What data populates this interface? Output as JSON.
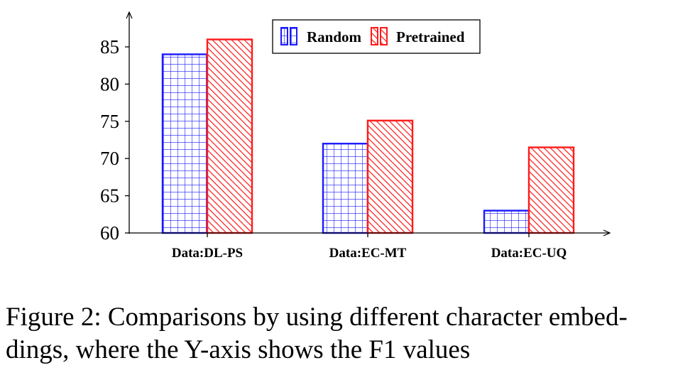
{
  "chart_data": {
    "type": "bar",
    "categories": [
      "Data:DL-PS",
      "Data:EC-MT",
      "Data:EC-UQ"
    ],
    "series": [
      {
        "name": "Random",
        "values": [
          84,
          72,
          63
        ],
        "color": "#1a1aff",
        "pattern": "grid"
      },
      {
        "name": "Pretrained",
        "values": [
          86,
          75.1,
          71.5
        ],
        "color": "#ff1a1a",
        "pattern": "diagonal-lines"
      }
    ],
    "ylim": [
      60,
      87
    ],
    "yticks": [
      60,
      65,
      70,
      75,
      80,
      85
    ],
    "ytick_labels": [
      "60",
      "65",
      "70",
      "75",
      "80",
      "85"
    ],
    "xlabel": "",
    "ylabel": "",
    "legend": "top-center",
    "grid": false
  },
  "caption": {
    "line1": "Figure 2: Comparisons by using different character embed-",
    "line2": "dings, where the Y-axis shows the F1 values"
  }
}
